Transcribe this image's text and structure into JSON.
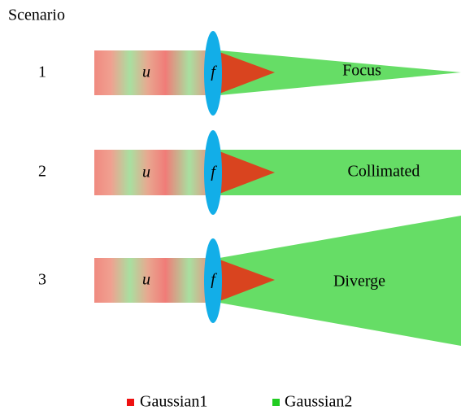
{
  "title": "Scenario",
  "rows": [
    {
      "number": "1",
      "input": "u",
      "lens": "f",
      "label": "Focus"
    },
    {
      "number": "2",
      "input": "u",
      "lens": "f",
      "label": "Collimated"
    },
    {
      "number": "3",
      "input": "u",
      "lens": "f",
      "label": "Diverge"
    }
  ],
  "legend": [
    {
      "name": "Gaussian1"
    },
    {
      "name": "Gaussian2"
    }
  ]
}
